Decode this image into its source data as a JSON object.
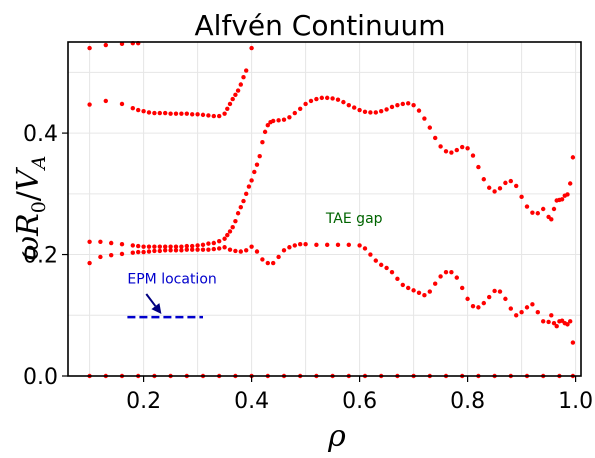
{
  "chart_data": {
    "type": "scatter",
    "title": "Alfvén Continuum",
    "xlabel": "ρ",
    "ylabel_parts": {
      "omega": "ω",
      "R": "R",
      "sub0": "0",
      "slash": "/",
      "V": "V",
      "subA": "A"
    },
    "xlim": [
      0.06,
      1.01
    ],
    "ylim": [
      0.0,
      0.55
    ],
    "xticks": [
      0.2,
      0.4,
      0.6,
      0.8,
      1.0
    ],
    "xtick_labels": [
      "0.2",
      "0.4",
      "0.6",
      "0.8",
      "1.0"
    ],
    "yticks": [
      0.0,
      0.2,
      0.4
    ],
    "ytick_labels": [
      "0.0",
      "0.2",
      "0.4"
    ],
    "grid": true,
    "marker_color": "#ff0000",
    "series": [
      {
        "points": [
          [
            0.1,
            0.54
          ],
          [
            0.13,
            0.545
          ],
          [
            0.16,
            0.547
          ],
          [
            0.18,
            0.548
          ],
          [
            0.19,
            0.548
          ],
          [
            0.4,
            0.54
          ],
          [
            0.1,
            0.447
          ],
          [
            0.13,
            0.453
          ],
          [
            0.16,
            0.448
          ],
          [
            0.18,
            0.441
          ],
          [
            0.19,
            0.438
          ],
          [
            0.2,
            0.436
          ],
          [
            0.21,
            0.434
          ],
          [
            0.22,
            0.433
          ],
          [
            0.23,
            0.433
          ],
          [
            0.24,
            0.433
          ],
          [
            0.25,
            0.432
          ],
          [
            0.26,
            0.432
          ],
          [
            0.27,
            0.432
          ],
          [
            0.28,
            0.432
          ],
          [
            0.29,
            0.431
          ],
          [
            0.3,
            0.431
          ],
          [
            0.31,
            0.43
          ],
          [
            0.32,
            0.429
          ],
          [
            0.33,
            0.428
          ],
          [
            0.34,
            0.428
          ],
          [
            0.35,
            0.432
          ],
          [
            0.355,
            0.44
          ],
          [
            0.36,
            0.448
          ],
          [
            0.365,
            0.456
          ],
          [
            0.37,
            0.463
          ],
          [
            0.375,
            0.47
          ],
          [
            0.38,
            0.48
          ],
          [
            0.385,
            0.492
          ],
          [
            0.39,
            0.503
          ],
          [
            0.1,
            0.221
          ],
          [
            0.12,
            0.221
          ],
          [
            0.14,
            0.219
          ],
          [
            0.16,
            0.217
          ],
          [
            0.18,
            0.215
          ],
          [
            0.19,
            0.214
          ],
          [
            0.2,
            0.213
          ],
          [
            0.21,
            0.213
          ],
          [
            0.22,
            0.213
          ],
          [
            0.23,
            0.213
          ],
          [
            0.24,
            0.213
          ],
          [
            0.25,
            0.213
          ],
          [
            0.26,
            0.213
          ],
          [
            0.27,
            0.213
          ],
          [
            0.28,
            0.214
          ],
          [
            0.29,
            0.214
          ],
          [
            0.3,
            0.215
          ],
          [
            0.31,
            0.216
          ],
          [
            0.32,
            0.218
          ],
          [
            0.33,
            0.219
          ],
          [
            0.34,
            0.222
          ],
          [
            0.35,
            0.226
          ],
          [
            0.355,
            0.232
          ],
          [
            0.36,
            0.238
          ],
          [
            0.365,
            0.245
          ],
          [
            0.37,
            0.255
          ],
          [
            0.375,
            0.268
          ],
          [
            0.38,
            0.278
          ],
          [
            0.385,
            0.288
          ],
          [
            0.39,
            0.3
          ],
          [
            0.395,
            0.312
          ],
          [
            0.4,
            0.322
          ],
          [
            0.405,
            0.336
          ],
          [
            0.41,
            0.348
          ],
          [
            0.415,
            0.362
          ],
          [
            0.42,
            0.385
          ],
          [
            0.425,
            0.402
          ],
          [
            0.43,
            0.413
          ],
          [
            0.435,
            0.418
          ],
          [
            0.44,
            0.42
          ],
          [
            0.45,
            0.421
          ],
          [
            0.46,
            0.422
          ],
          [
            0.47,
            0.426
          ],
          [
            0.48,
            0.433
          ],
          [
            0.49,
            0.44
          ],
          [
            0.5,
            0.448
          ],
          [
            0.51,
            0.453
          ],
          [
            0.52,
            0.456
          ],
          [
            0.53,
            0.458
          ],
          [
            0.54,
            0.458
          ],
          [
            0.55,
            0.457
          ],
          [
            0.56,
            0.455
          ],
          [
            0.57,
            0.451
          ],
          [
            0.58,
            0.446
          ],
          [
            0.59,
            0.442
          ],
          [
            0.6,
            0.438
          ],
          [
            0.61,
            0.435
          ],
          [
            0.62,
            0.434
          ],
          [
            0.63,
            0.434
          ],
          [
            0.64,
            0.436
          ],
          [
            0.65,
            0.439
          ],
          [
            0.66,
            0.443
          ],
          [
            0.67,
            0.446
          ],
          [
            0.68,
            0.448
          ],
          [
            0.69,
            0.449
          ],
          [
            0.7,
            0.446
          ],
          [
            0.71,
            0.437
          ],
          [
            0.72,
            0.424
          ],
          [
            0.73,
            0.409
          ],
          [
            0.74,
            0.392
          ],
          [
            0.75,
            0.378
          ],
          [
            0.76,
            0.37
          ],
          [
            0.77,
            0.368
          ],
          [
            0.78,
            0.372
          ],
          [
            0.79,
            0.377
          ],
          [
            0.8,
            0.375
          ],
          [
            0.81,
            0.363
          ],
          [
            0.82,
            0.344
          ],
          [
            0.83,
            0.324
          ],
          [
            0.84,
            0.31
          ],
          [
            0.85,
            0.304
          ],
          [
            0.86,
            0.309
          ],
          [
            0.87,
            0.318
          ],
          [
            0.88,
            0.321
          ],
          [
            0.89,
            0.313
          ],
          [
            0.9,
            0.295
          ],
          [
            0.91,
            0.279
          ],
          [
            0.92,
            0.269
          ],
          [
            0.93,
            0.268
          ],
          [
            0.94,
            0.275
          ],
          [
            0.95,
            0.262
          ],
          [
            0.955,
            0.258
          ],
          [
            0.96,
            0.275
          ],
          [
            0.965,
            0.289
          ],
          [
            0.97,
            0.29
          ],
          [
            0.975,
            0.291
          ],
          [
            0.98,
            0.297
          ],
          [
            0.985,
            0.299
          ],
          [
            0.99,
            0.317
          ],
          [
            0.995,
            0.36
          ],
          [
            0.1,
            0.186
          ],
          [
            0.12,
            0.196
          ],
          [
            0.14,
            0.199
          ],
          [
            0.16,
            0.201
          ],
          [
            0.18,
            0.203
          ],
          [
            0.19,
            0.204
          ],
          [
            0.2,
            0.204
          ],
          [
            0.21,
            0.205
          ],
          [
            0.22,
            0.206
          ],
          [
            0.23,
            0.206
          ],
          [
            0.24,
            0.207
          ],
          [
            0.25,
            0.207
          ],
          [
            0.26,
            0.207
          ],
          [
            0.27,
            0.207
          ],
          [
            0.28,
            0.208
          ],
          [
            0.29,
            0.208
          ],
          [
            0.3,
            0.208
          ],
          [
            0.31,
            0.208
          ],
          [
            0.32,
            0.208
          ],
          [
            0.33,
            0.209
          ],
          [
            0.34,
            0.21
          ],
          [
            0.35,
            0.212
          ],
          [
            0.36,
            0.208
          ],
          [
            0.37,
            0.206
          ],
          [
            0.38,
            0.205
          ],
          [
            0.39,
            0.207
          ],
          [
            0.4,
            0.213
          ],
          [
            0.41,
            0.205
          ],
          [
            0.42,
            0.192
          ],
          [
            0.43,
            0.186
          ],
          [
            0.44,
            0.186
          ],
          [
            0.45,
            0.196
          ],
          [
            0.46,
            0.207
          ],
          [
            0.47,
            0.212
          ],
          [
            0.48,
            0.215
          ],
          [
            0.49,
            0.217
          ],
          [
            0.5,
            0.217
          ],
          [
            0.52,
            0.216
          ],
          [
            0.54,
            0.216
          ],
          [
            0.56,
            0.216
          ],
          [
            0.58,
            0.216
          ],
          [
            0.6,
            0.215
          ],
          [
            0.61,
            0.21
          ],
          [
            0.62,
            0.2
          ],
          [
            0.63,
            0.19
          ],
          [
            0.64,
            0.183
          ],
          [
            0.65,
            0.178
          ],
          [
            0.66,
            0.171
          ],
          [
            0.67,
            0.16
          ],
          [
            0.68,
            0.15
          ],
          [
            0.69,
            0.145
          ],
          [
            0.7,
            0.141
          ],
          [
            0.71,
            0.137
          ],
          [
            0.72,
            0.133
          ],
          [
            0.73,
            0.139
          ],
          [
            0.74,
            0.152
          ],
          [
            0.75,
            0.164
          ],
          [
            0.76,
            0.171
          ],
          [
            0.77,
            0.171
          ],
          [
            0.78,
            0.162
          ],
          [
            0.79,
            0.145
          ],
          [
            0.8,
            0.127
          ],
          [
            0.81,
            0.115
          ],
          [
            0.82,
            0.113
          ],
          [
            0.83,
            0.12
          ],
          [
            0.84,
            0.13
          ],
          [
            0.85,
            0.14
          ],
          [
            0.86,
            0.139
          ],
          [
            0.87,
            0.127
          ],
          [
            0.88,
            0.111
          ],
          [
            0.89,
            0.1
          ],
          [
            0.9,
            0.105
          ],
          [
            0.91,
            0.113
          ],
          [
            0.92,
            0.118
          ],
          [
            0.93,
            0.105
          ],
          [
            0.94,
            0.09
          ],
          [
            0.95,
            0.089
          ],
          [
            0.955,
            0.1
          ],
          [
            0.96,
            0.087
          ],
          [
            0.965,
            0.082
          ],
          [
            0.97,
            0.09
          ],
          [
            0.975,
            0.091
          ],
          [
            0.98,
            0.087
          ],
          [
            0.985,
            0.085
          ],
          [
            0.99,
            0.09
          ],
          [
            0.995,
            0.055
          ],
          [
            0.1,
            0.0
          ],
          [
            0.13,
            0.0
          ],
          [
            0.16,
            0.0
          ],
          [
            0.19,
            0.0
          ],
          [
            0.22,
            0.0
          ],
          [
            0.25,
            0.0
          ],
          [
            0.28,
            0.0
          ],
          [
            0.31,
            0.0
          ],
          [
            0.34,
            0.0
          ],
          [
            0.37,
            0.0
          ],
          [
            0.4,
            0.0
          ],
          [
            0.43,
            0.0
          ],
          [
            0.46,
            0.0
          ],
          [
            0.49,
            0.0
          ],
          [
            0.52,
            0.0
          ],
          [
            0.55,
            0.0
          ],
          [
            0.58,
            0.0
          ],
          [
            0.61,
            0.0
          ],
          [
            0.64,
            0.0
          ],
          [
            0.67,
            0.0
          ],
          [
            0.7,
            0.0
          ],
          [
            0.73,
            0.0
          ],
          [
            0.76,
            0.0
          ],
          [
            0.79,
            0.0
          ],
          [
            0.82,
            0.0
          ],
          [
            0.85,
            0.0
          ],
          [
            0.88,
            0.0
          ],
          [
            0.91,
            0.0
          ],
          [
            0.94,
            0.0
          ],
          [
            0.97,
            0.0
          ],
          [
            0.995,
            0.0
          ]
        ]
      }
    ],
    "annotations": [
      {
        "text": "TAE gap",
        "color": "#006400",
        "x": 0.59,
        "y": 0.252
      },
      {
        "text": "EPM location",
        "color": "#0000cc",
        "x": 0.17,
        "y": 0.152
      }
    ],
    "epm_line": {
      "x_start": 0.17,
      "x_end": 0.31,
      "y": 0.097,
      "color": "#0000cc"
    },
    "arrow": {
      "from_x": 0.205,
      "from_y": 0.135,
      "to_x": 0.233,
      "to_y": 0.102,
      "color": "#000080"
    }
  }
}
